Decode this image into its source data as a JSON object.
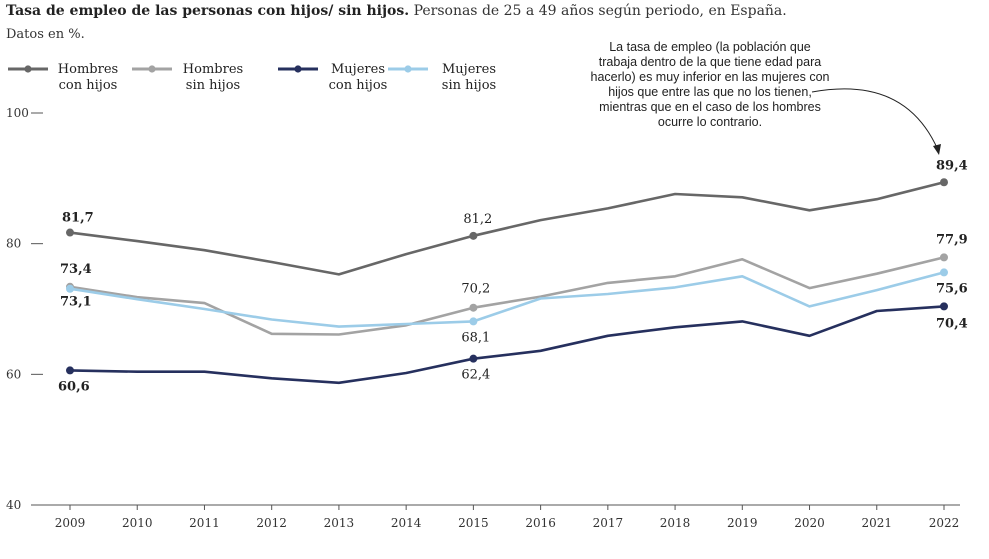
{
  "header": {
    "title": "Tasa de empleo de las personas con hijos/ sin hijos.",
    "subtitle": "Personas de 25 a 49 años según periodo, en España.",
    "units": "Datos en %."
  },
  "annotation": "La tasa de empleo (la población que trabaja dentro de la que tiene edad para hacerlo) es muy inferior en las mujeres con hijos que entre las que no los tienen, mientras que en el caso de los hombres ocurre lo contrario.",
  "legend": [
    {
      "line1": "Hombres",
      "line2": "con hijos",
      "color": "#676767"
    },
    {
      "line1": "Hombres",
      "line2": "sin hijos",
      "color": "#a3a3a3"
    },
    {
      "line1": "Mujeres",
      "line2": "con hijos",
      "color": "#26305e"
    },
    {
      "line1": "Mujeres",
      "line2": "sin hijos",
      "color": "#9ccce8"
    }
  ],
  "chart_data": {
    "type": "line",
    "title": "Tasa de empleo de las personas con hijos/ sin hijos.",
    "subtitle": "Personas de 25 a 49 años según periodo, en España.",
    "ylabel": "Datos en %.",
    "x": [
      "2009",
      "2010",
      "2011",
      "2012",
      "2013",
      "2014",
      "2015",
      "2016",
      "2017",
      "2018",
      "2019",
      "2020",
      "2021",
      "2022"
    ],
    "ylim": [
      40,
      100
    ],
    "yticks": [
      40,
      60,
      80,
      100
    ],
    "grid": false,
    "legend_position": "top-left",
    "series": [
      {
        "name": "Hombres con hijos",
        "color": "#676767",
        "values": [
          81.7,
          80.4,
          79.0,
          77.2,
          75.3,
          78.4,
          81.2,
          83.6,
          85.4,
          87.6,
          87.1,
          85.1,
          86.8,
          89.4
        ]
      },
      {
        "name": "Hombres sin hijos",
        "color": "#a3a3a3",
        "values": [
          73.4,
          71.8,
          70.9,
          66.2,
          66.1,
          67.5,
          70.2,
          71.9,
          74.0,
          75.0,
          77.6,
          73.2,
          75.4,
          77.9
        ]
      },
      {
        "name": "Mujeres con hijos",
        "color": "#26305e",
        "values": [
          60.6,
          60.4,
          60.4,
          59.4,
          58.7,
          60.2,
          62.4,
          63.6,
          65.9,
          67.2,
          68.1,
          65.9,
          69.7,
          70.4
        ]
      },
      {
        "name": "Mujeres sin hijos",
        "color": "#9ccce8",
        "values": [
          73.1,
          71.5,
          70.0,
          68.4,
          67.3,
          67.7,
          68.1,
          71.6,
          72.3,
          73.3,
          75.0,
          70.4,
          72.9,
          75.6
        ]
      }
    ],
    "point_labels": [
      {
        "series": 0,
        "index": 0,
        "text": "81,7",
        "bold": true
      },
      {
        "series": 0,
        "index": 6,
        "text": "81,2",
        "bold": false
      },
      {
        "series": 0,
        "index": 13,
        "text": "89,4",
        "bold": true
      },
      {
        "series": 1,
        "index": 0,
        "text": "73,4",
        "bold": true
      },
      {
        "series": 1,
        "index": 6,
        "text": "70,2",
        "bold": false
      },
      {
        "series": 1,
        "index": 13,
        "text": "77,9",
        "bold": true
      },
      {
        "series": 3,
        "index": 0,
        "text": "73,1",
        "bold": true
      },
      {
        "series": 3,
        "index": 6,
        "text": "68,1",
        "bold": false
      },
      {
        "series": 3,
        "index": 13,
        "text": "75,6",
        "bold": true
      },
      {
        "series": 2,
        "index": 0,
        "text": "60,6",
        "bold": true
      },
      {
        "series": 2,
        "index": 6,
        "text": "62,4",
        "bold": false
      },
      {
        "series": 2,
        "index": 13,
        "text": "70,4",
        "bold": true
      }
    ]
  }
}
